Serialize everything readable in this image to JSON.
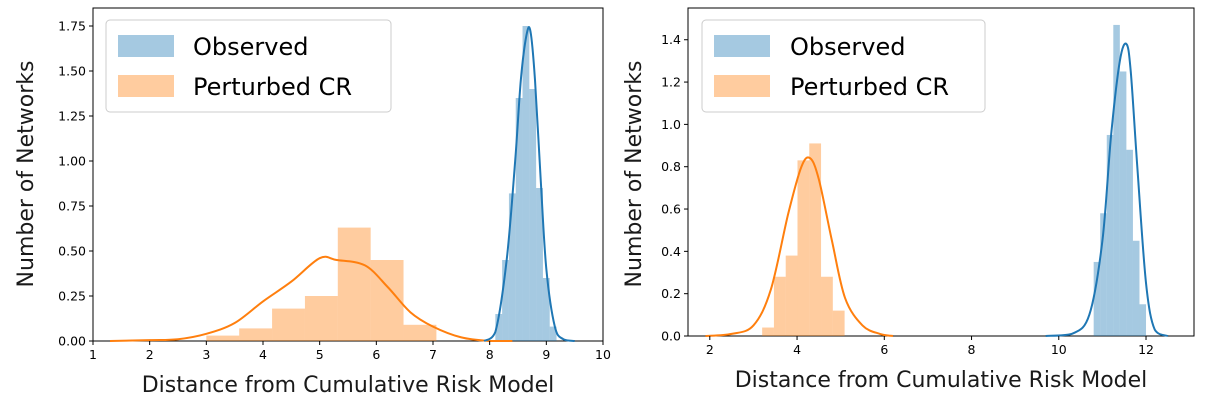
{
  "chart_data": [
    {
      "type": "histogram",
      "title": "",
      "xlabel": "Distance from Cumulative Risk Model",
      "ylabel": "Number of Networks",
      "xlim": [
        1,
        10
      ],
      "ylim": [
        0,
        1.85
      ],
      "xticks": [
        1,
        2,
        3,
        4,
        5,
        6,
        7,
        8,
        9,
        10
      ],
      "yticks": [
        0.0,
        0.25,
        0.5,
        0.75,
        1.0,
        1.25,
        1.5,
        1.75
      ],
      "ytick_labels": [
        "0.00",
        "0.25",
        "0.50",
        "0.75",
        "1.00",
        "1.25",
        "1.50",
        "1.75"
      ],
      "legend_position": "top-left",
      "grid": false,
      "series": [
        {
          "name": "Perturbed CR",
          "color": "#ff7f0e",
          "bin_edges": [
            3.0,
            3.58,
            4.16,
            4.74,
            5.32,
            5.9,
            6.48,
            7.06
          ],
          "bin_heights": [
            0.03,
            0.07,
            0.18,
            0.25,
            0.63,
            0.45,
            0.09
          ],
          "kde_x": [
            1.3,
            2.0,
            2.5,
            3.0,
            3.5,
            4.0,
            4.5,
            5.0,
            5.3,
            5.8,
            6.2,
            6.6,
            7.0,
            7.5,
            8.0,
            8.4
          ],
          "kde_y": [
            0.0,
            0.005,
            0.01,
            0.04,
            0.1,
            0.22,
            0.33,
            0.46,
            0.45,
            0.42,
            0.3,
            0.16,
            0.08,
            0.02,
            0.0,
            0.0
          ]
        },
        {
          "name": "Observed",
          "color": "#1f77b4",
          "bin_edges": [
            8.1,
            8.22,
            8.34,
            8.46,
            8.58,
            8.7,
            8.82,
            8.94,
            9.06,
            9.18
          ],
          "bin_heights": [
            0.15,
            0.45,
            0.82,
            1.35,
            1.75,
            1.4,
            0.85,
            0.35,
            0.08
          ],
          "kde_x": [
            7.9,
            8.1,
            8.3,
            8.45,
            8.55,
            8.65,
            8.72,
            8.8,
            8.9,
            9.0,
            9.15,
            9.3,
            9.5
          ],
          "kde_y": [
            0.0,
            0.05,
            0.45,
            1.0,
            1.45,
            1.7,
            1.72,
            1.45,
            0.9,
            0.4,
            0.08,
            0.01,
            0.0
          ]
        }
      ]
    },
    {
      "type": "histogram",
      "title": "",
      "xlabel": "Distance from Cumulative Risk Model",
      "ylabel": "Number of Networks",
      "xlim": [
        1.5,
        13.1
      ],
      "ylim": [
        0,
        1.55
      ],
      "xticks": [
        2,
        4,
        6,
        8,
        10,
        12
      ],
      "yticks": [
        0.0,
        0.2,
        0.4,
        0.6,
        0.8,
        1.0,
        1.2,
        1.4
      ],
      "ytick_labels": [
        "0.0",
        "0.2",
        "0.4",
        "0.6",
        "0.8",
        "1.0",
        "1.2",
        "1.4"
      ],
      "legend_position": "top-left",
      "grid": false,
      "series": [
        {
          "name": "Perturbed CR",
          "color": "#ff7f0e",
          "bin_edges": [
            3.2,
            3.47,
            3.74,
            4.01,
            4.28,
            4.55,
            4.82,
            5.09
          ],
          "bin_heights": [
            0.04,
            0.28,
            0.38,
            0.83,
            0.91,
            0.28,
            0.12
          ],
          "kde_x": [
            1.9,
            2.5,
            3.0,
            3.4,
            3.8,
            4.1,
            4.3,
            4.5,
            4.8,
            5.1,
            5.5,
            5.9,
            6.2
          ],
          "kde_y": [
            0.0,
            0.01,
            0.05,
            0.22,
            0.58,
            0.8,
            0.84,
            0.74,
            0.45,
            0.18,
            0.05,
            0.01,
            0.0
          ]
        },
        {
          "name": "Observed",
          "color": "#1f77b4",
          "bin_edges": [
            10.8,
            10.95,
            11.1,
            11.25,
            11.4,
            11.55,
            11.7,
            11.85,
            12.0
          ],
          "bin_heights": [
            0.35,
            0.58,
            0.95,
            1.47,
            1.25,
            0.88,
            0.45,
            0.15
          ],
          "kde_x": [
            9.7,
            10.3,
            10.7,
            11.0,
            11.2,
            11.4,
            11.55,
            11.65,
            11.8,
            12.0,
            12.2,
            12.5
          ],
          "kde_y": [
            0.0,
            0.01,
            0.1,
            0.45,
            0.95,
            1.3,
            1.38,
            1.25,
            0.8,
            0.25,
            0.03,
            0.0
          ]
        }
      ]
    }
  ]
}
